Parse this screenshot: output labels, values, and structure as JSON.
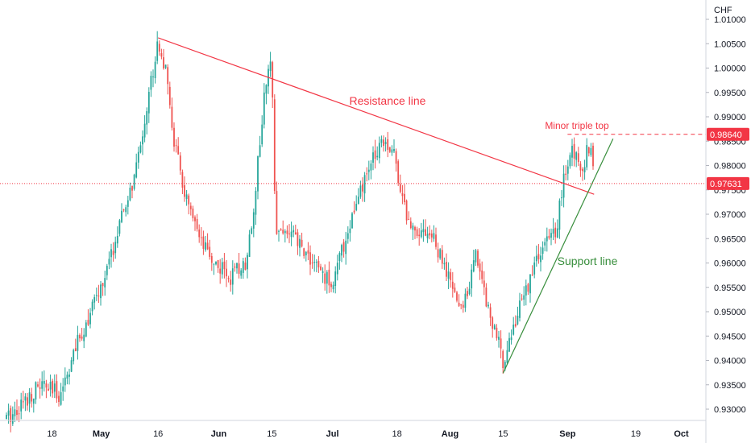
{
  "chart_data": {
    "type": "candlestick",
    "currency": "CHF",
    "ylim": [
      0.9275,
      1.01
    ],
    "y_ticks": [
      "1.01000",
      "1.00500",
      "1.00000",
      "0.99500",
      "0.99000",
      "0.98500",
      "0.98000",
      "0.97500",
      "0.97000",
      "0.96500",
      "0.96000",
      "0.95500",
      "0.95000",
      "0.94500",
      "0.94000",
      "0.93500",
      "0.93000"
    ],
    "x_ticks": [
      {
        "label": "18",
        "bold": false
      },
      {
        "label": "May",
        "bold": true
      },
      {
        "label": "16",
        "bold": false
      },
      {
        "label": "Jun",
        "bold": true
      },
      {
        "label": "15",
        "bold": false
      },
      {
        "label": "Jul",
        "bold": true
      },
      {
        "label": "18",
        "bold": false
      },
      {
        "label": "Aug",
        "bold": true
      },
      {
        "label": "15",
        "bold": false
      },
      {
        "label": "Sep",
        "bold": true
      },
      {
        "label": "19",
        "bold": false
      },
      {
        "label": "Oct",
        "bold": true
      }
    ],
    "time_range": [
      "2022-04-06",
      "2022-10-05"
    ],
    "price_path": [
      [
        "2022-04-06",
        0.928
      ],
      [
        "2022-04-15",
        0.935
      ],
      [
        "2022-04-20",
        0.933
      ],
      [
        "2022-04-25",
        0.944
      ],
      [
        "2022-05-02",
        0.957
      ],
      [
        "2022-05-06",
        0.968
      ],
      [
        "2022-05-10",
        0.978
      ],
      [
        "2022-05-13",
        0.992
      ],
      [
        "2022-05-16",
        1.006
      ],
      [
        "2022-05-18",
        0.999
      ],
      [
        "2022-05-20",
        0.986
      ],
      [
        "2022-05-23",
        0.974
      ],
      [
        "2022-05-27",
        0.964
      ],
      [
        "2022-05-31",
        0.96
      ],
      [
        "2022-06-04",
        0.957
      ],
      [
        "2022-06-08",
        0.96
      ],
      [
        "2022-06-10",
        0.97
      ],
      [
        "2022-06-13",
        0.994
      ],
      [
        "2022-06-15",
        1.002
      ],
      [
        "2022-06-16",
        0.967
      ],
      [
        "2022-06-20",
        0.966
      ],
      [
        "2022-06-24",
        0.962
      ],
      [
        "2022-06-29",
        0.957
      ],
      [
        "2022-07-01",
        0.956
      ],
      [
        "2022-07-06",
        0.969
      ],
      [
        "2022-07-11",
        0.98
      ],
      [
        "2022-07-14",
        0.986
      ],
      [
        "2022-07-17",
        0.983
      ],
      [
        "2022-07-21",
        0.968
      ],
      [
        "2022-07-27",
        0.966
      ],
      [
        "2022-08-01",
        0.956
      ],
      [
        "2022-08-04",
        0.95
      ],
      [
        "2022-08-08",
        0.962
      ],
      [
        "2022-08-11",
        0.951
      ],
      [
        "2022-08-15",
        0.94
      ],
      [
        "2022-08-19",
        0.95
      ],
      [
        "2022-08-24",
        0.961
      ],
      [
        "2022-08-29",
        0.967
      ],
      [
        "2022-08-31",
        0.977
      ],
      [
        "2022-09-02",
        0.983
      ],
      [
        "2022-09-05",
        0.98
      ],
      [
        "2022-09-07",
        0.985
      ],
      [
        "2022-09-08",
        0.9763
      ]
    ],
    "last_price": {
      "label": "0.97631",
      "value": 0.97631,
      "color": "#f23645"
    },
    "marked_level": {
      "label": "0.98640",
      "value": 0.9864,
      "color": "#f23645"
    },
    "resistance_line": {
      "label": "Resistance line",
      "color": "#f23645",
      "from": [
        "2022-05-16",
        1.0062
      ],
      "to": [
        "2022-09-08",
        0.9741
      ]
    },
    "support_line": {
      "label": "Support line",
      "color": "#388e3c",
      "from": [
        "2022-08-15",
        0.9374
      ],
      "to": [
        "2022-09-13",
        0.9855
      ]
    },
    "triple_top": {
      "label": "Minor triple top",
      "color": "#f23645",
      "from": "2022-09-01",
      "to": "2022-10-05",
      "value": 0.9864
    },
    "colors": {
      "up": "#26a69a",
      "down": "#ef5350",
      "grid": "#e0e3eb",
      "text": "#131722"
    }
  }
}
